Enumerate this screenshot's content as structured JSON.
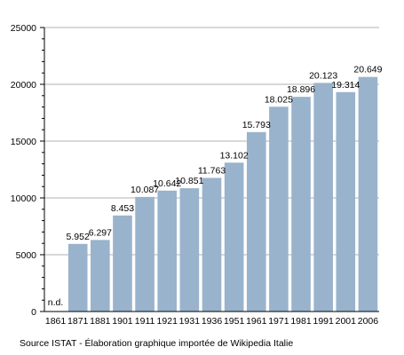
{
  "chart_data": {
    "type": "bar",
    "categories": [
      "1861",
      "1871",
      "1881",
      "1901",
      "1911",
      "1921",
      "1931",
      "1936",
      "1951",
      "1961",
      "1971",
      "1981",
      "1991",
      "2001",
      "2006"
    ],
    "values": [
      null,
      5952,
      6297,
      8453,
      10087,
      10642,
      10851,
      11763,
      13102,
      15793,
      18025,
      18896,
      20123,
      19314,
      20649
    ],
    "value_labels": [
      "n.d.",
      "5.952",
      "6.297",
      "8.453",
      "10.087",
      "10.642",
      "10.851",
      "11.763",
      "13.102",
      "15.793",
      "18.025",
      "18.896",
      "20.123",
      "19.314",
      "20.649"
    ],
    "y_ticks": [
      0,
      5000,
      10000,
      15000,
      20000,
      25000
    ],
    "ylim": [
      0,
      25000
    ],
    "grid": true,
    "bar_color": "#99b3cc",
    "title": "",
    "xlabel": "",
    "ylabel": ""
  },
  "source_text": "Source ISTAT - Élaboration graphique importée de Wikipedia Italie"
}
